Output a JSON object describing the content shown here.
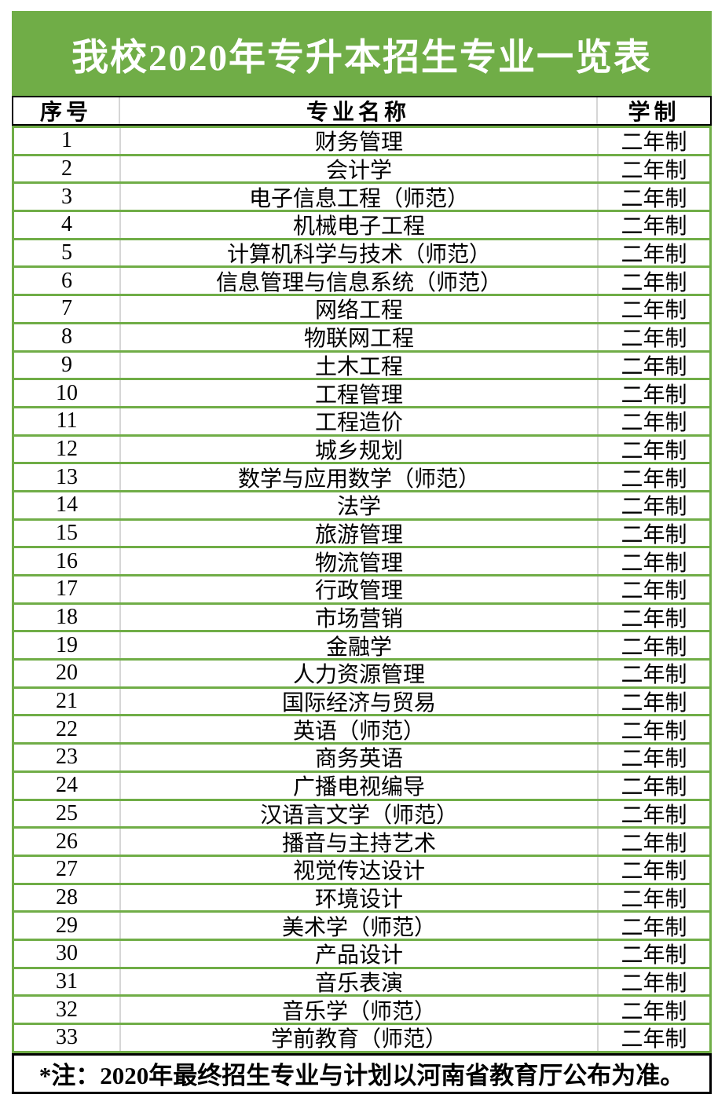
{
  "title": "我校2020年专升本招生专业一览表",
  "table": {
    "headers": {
      "num": "序号",
      "major": "专业名称",
      "duration": "学制"
    },
    "rows": [
      {
        "num": "1",
        "major": "财务管理",
        "duration": "二年制"
      },
      {
        "num": "2",
        "major": "会计学",
        "duration": "二年制"
      },
      {
        "num": "3",
        "major": "电子信息工程（师范）",
        "duration": "二年制"
      },
      {
        "num": "4",
        "major": "机械电子工程",
        "duration": "二年制"
      },
      {
        "num": "5",
        "major": "计算机科学与技术（师范）",
        "duration": "二年制"
      },
      {
        "num": "6",
        "major": "信息管理与信息系统（师范）",
        "duration": "二年制"
      },
      {
        "num": "7",
        "major": "网络工程",
        "duration": "二年制"
      },
      {
        "num": "8",
        "major": "物联网工程",
        "duration": "二年制"
      },
      {
        "num": "9",
        "major": "土木工程",
        "duration": "二年制"
      },
      {
        "num": "10",
        "major": "工程管理",
        "duration": "二年制"
      },
      {
        "num": "11",
        "major": "工程造价",
        "duration": "二年制"
      },
      {
        "num": "12",
        "major": "城乡规划",
        "duration": "二年制"
      },
      {
        "num": "13",
        "major": "数学与应用数学（师范）",
        "duration": "二年制"
      },
      {
        "num": "14",
        "major": "法学",
        "duration": "二年制"
      },
      {
        "num": "15",
        "major": "旅游管理",
        "duration": "二年制"
      },
      {
        "num": "16",
        "major": "物流管理",
        "duration": "二年制"
      },
      {
        "num": "17",
        "major": "行政管理",
        "duration": "二年制"
      },
      {
        "num": "18",
        "major": "市场营销",
        "duration": "二年制"
      },
      {
        "num": "19",
        "major": "金融学",
        "duration": "二年制"
      },
      {
        "num": "20",
        "major": "人力资源管理",
        "duration": "二年制"
      },
      {
        "num": "21",
        "major": "国际经济与贸易",
        "duration": "二年制"
      },
      {
        "num": "22",
        "major": "英语（师范）",
        "duration": "二年制"
      },
      {
        "num": "23",
        "major": "商务英语",
        "duration": "二年制"
      },
      {
        "num": "24",
        "major": "广播电视编导",
        "duration": "二年制"
      },
      {
        "num": "25",
        "major": "汉语言文学（师范）",
        "duration": "二年制"
      },
      {
        "num": "26",
        "major": "播音与主持艺术",
        "duration": "二年制"
      },
      {
        "num": "27",
        "major": "视觉传达设计",
        "duration": "二年制"
      },
      {
        "num": "28",
        "major": "环境设计",
        "duration": "二年制"
      },
      {
        "num": "29",
        "major": "美术学（师范）",
        "duration": "二年制"
      },
      {
        "num": "30",
        "major": "产品设计",
        "duration": "二年制"
      },
      {
        "num": "31",
        "major": "音乐表演",
        "duration": "二年制"
      },
      {
        "num": "32",
        "major": "音乐学（师范）",
        "duration": "二年制"
      },
      {
        "num": "33",
        "major": "学前教育（师范）",
        "duration": "二年制"
      }
    ]
  },
  "note": "*注：2020年最终招生专业与计划以河南省教育厅公布为准。",
  "colors": {
    "green": "#70AD47",
    "separator_gray": "#D6D6D6",
    "border_black": "#000000",
    "title_text": "#FFFFFF"
  }
}
